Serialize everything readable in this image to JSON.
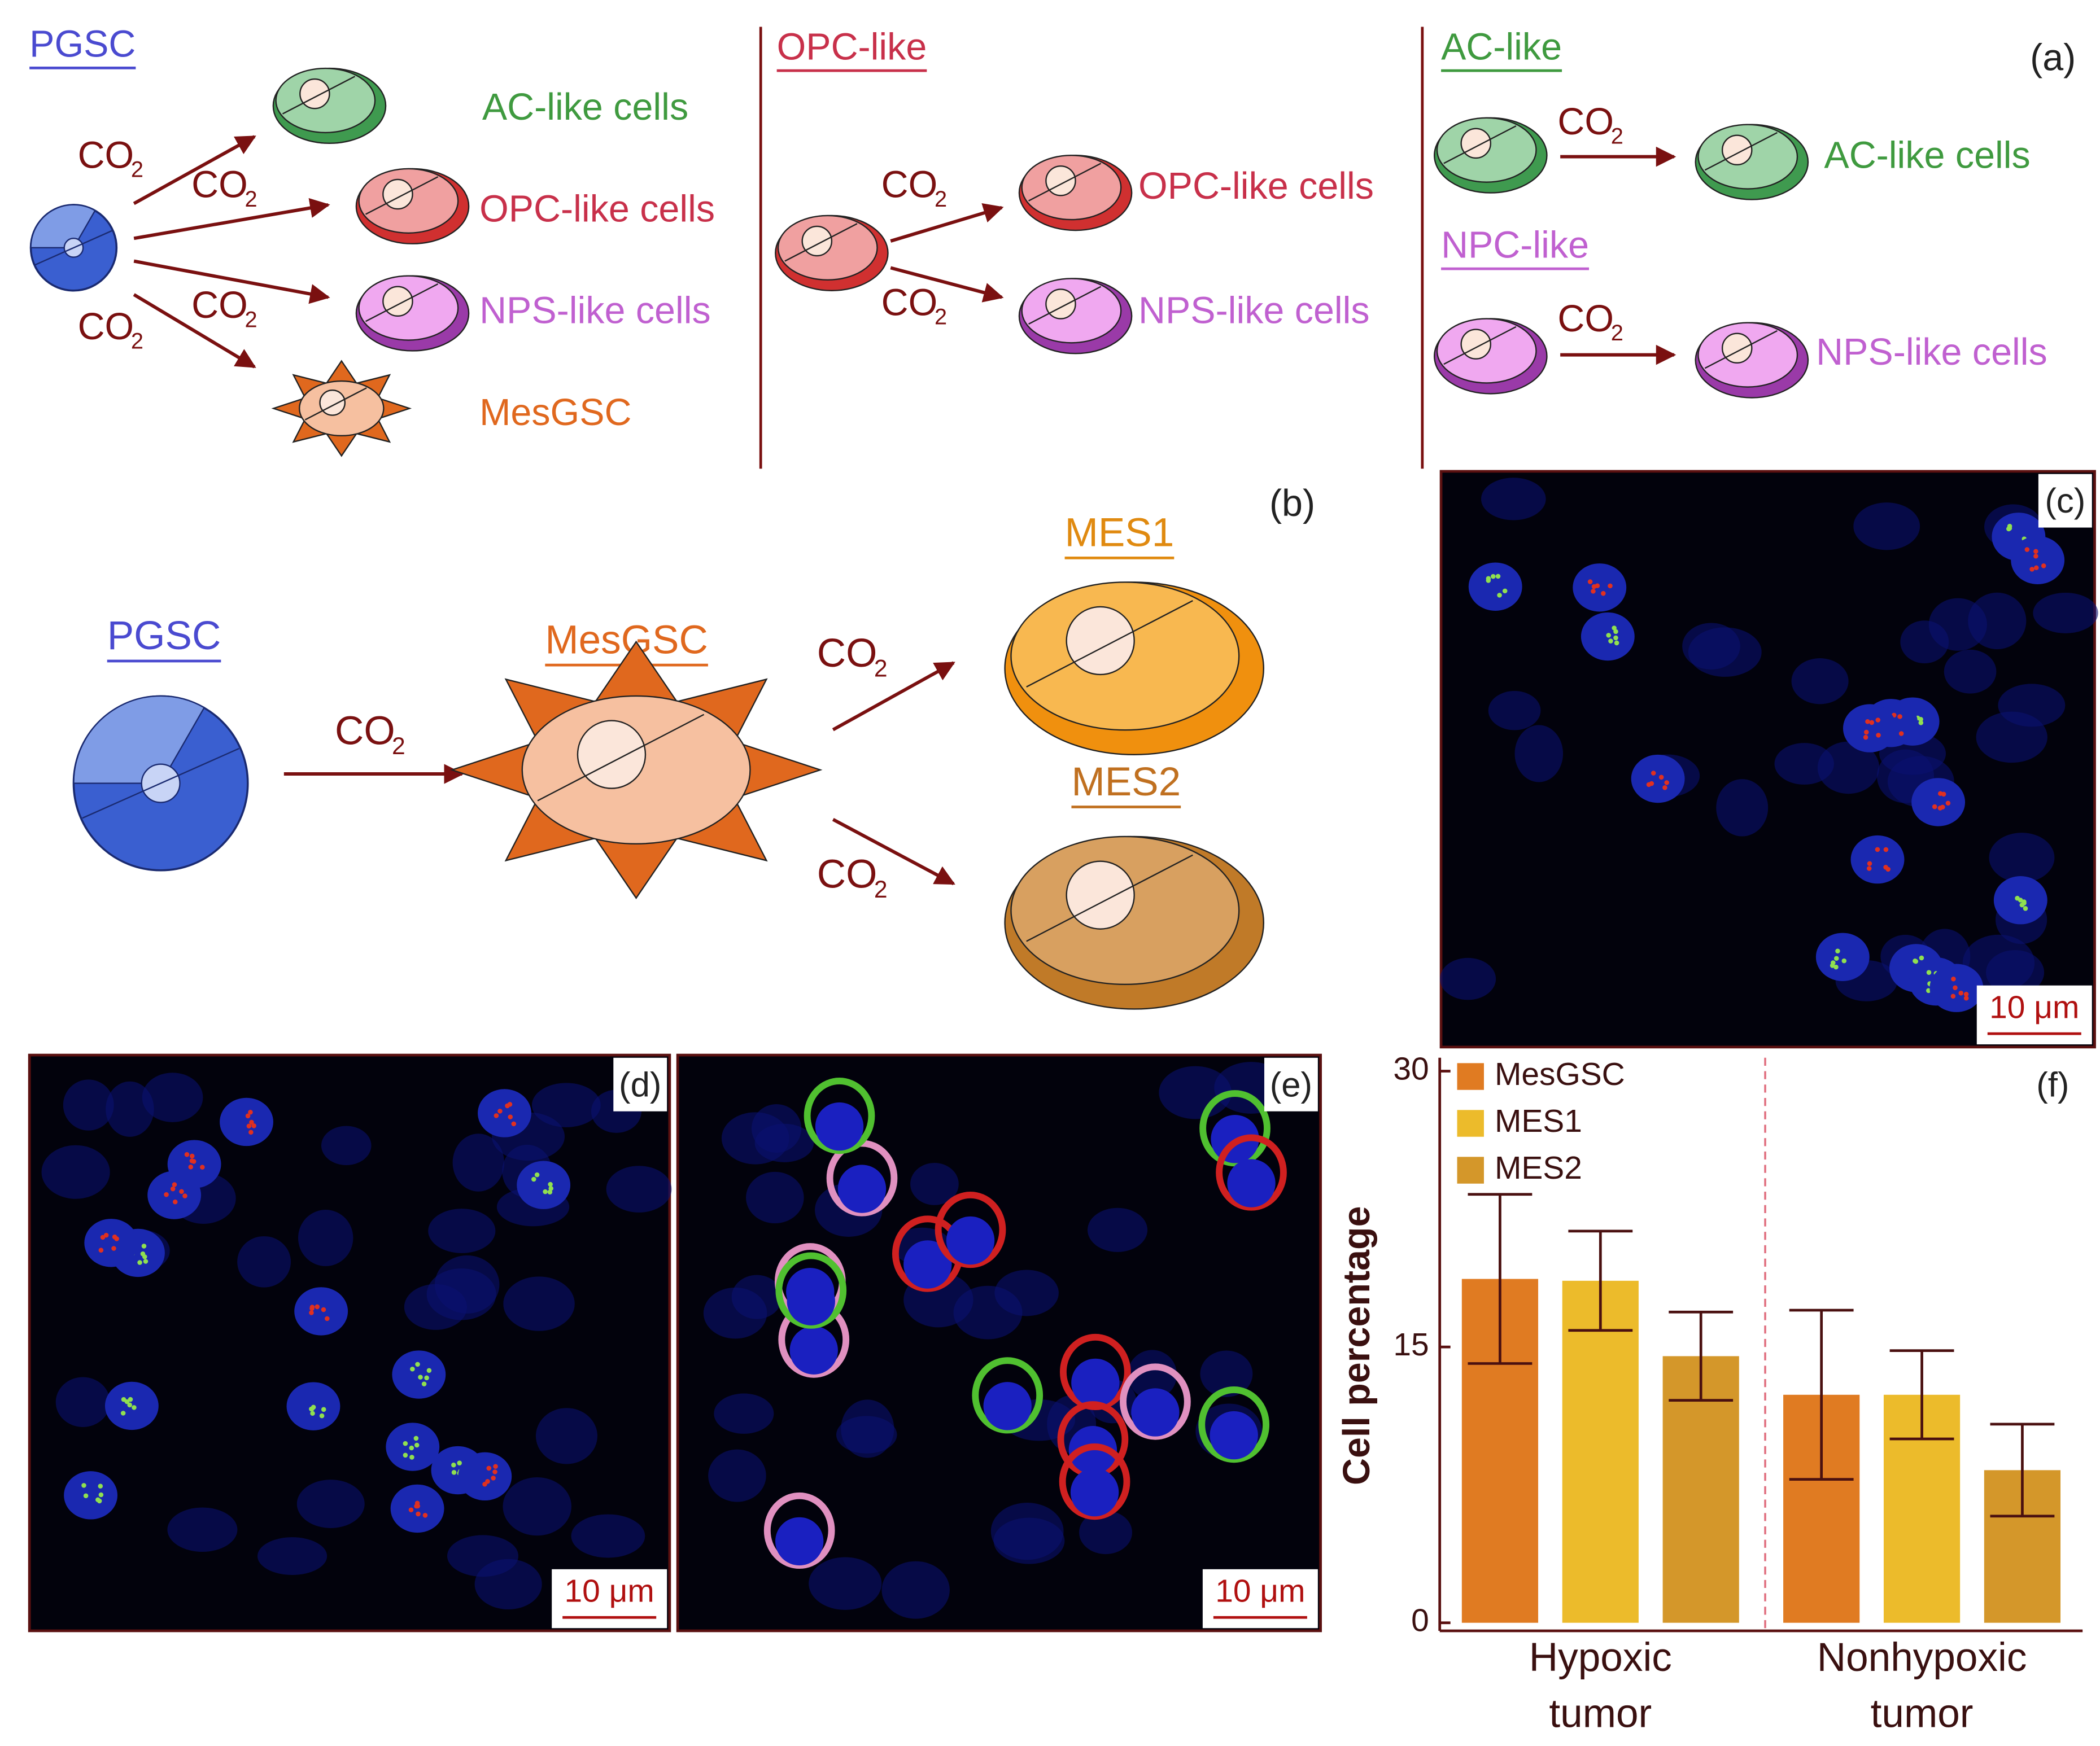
{
  "co2": {
    "text": "CO",
    "subscript": "2"
  },
  "panel_a": {
    "label": "(a)",
    "pgsc": {
      "title": "PGSC",
      "targets": [
        "AC-like cells",
        "OPC-like cells",
        "NPS-like cells",
        "MesGSC"
      ]
    },
    "opc": {
      "title": "OPC-like",
      "targets": [
        "OPC-like cells",
        "NPS-like cells"
      ]
    },
    "ac": {
      "title": "AC-like",
      "target": "AC-like cells"
    },
    "npc": {
      "title": "NPC-like",
      "target": "NPS-like cells"
    }
  },
  "panel_b": {
    "label": "(b)",
    "source": "PGSC",
    "middle": "MesGSC",
    "targets": [
      "MES1",
      "MES2"
    ]
  },
  "panel_c": {
    "label": "(c)",
    "scale_bar": "10 μm"
  },
  "panel_d": {
    "label": "(d)",
    "scale_bar": "10 μm"
  },
  "panel_e": {
    "label": "(e)",
    "scale_bar": "10 μm"
  },
  "chart_data": {
    "type": "bar",
    "panel_label": "(f)",
    "y_label": "Cell percentage",
    "categories": [
      [
        "Hypoxic",
        "tumor"
      ],
      [
        "Nonhypoxic",
        "tumor"
      ]
    ],
    "series": [
      {
        "name": "MesGSC",
        "color": "#e07b22",
        "values": [
          18.7,
          12.4
        ],
        "errors": [
          4.6,
          4.6
        ]
      },
      {
        "name": "MES1",
        "color": "#ecbb2b",
        "values": [
          18.6,
          12.4
        ],
        "errors": [
          2.7,
          2.4
        ]
      },
      {
        "name": "MES2",
        "color": "#d4972a",
        "values": [
          14.5,
          8.3
        ],
        "errors": [
          2.4,
          2.5
        ]
      }
    ],
    "ylim": [
      0,
      30
    ],
    "yticks": [
      0,
      15,
      30
    ],
    "legend": "top-left"
  }
}
